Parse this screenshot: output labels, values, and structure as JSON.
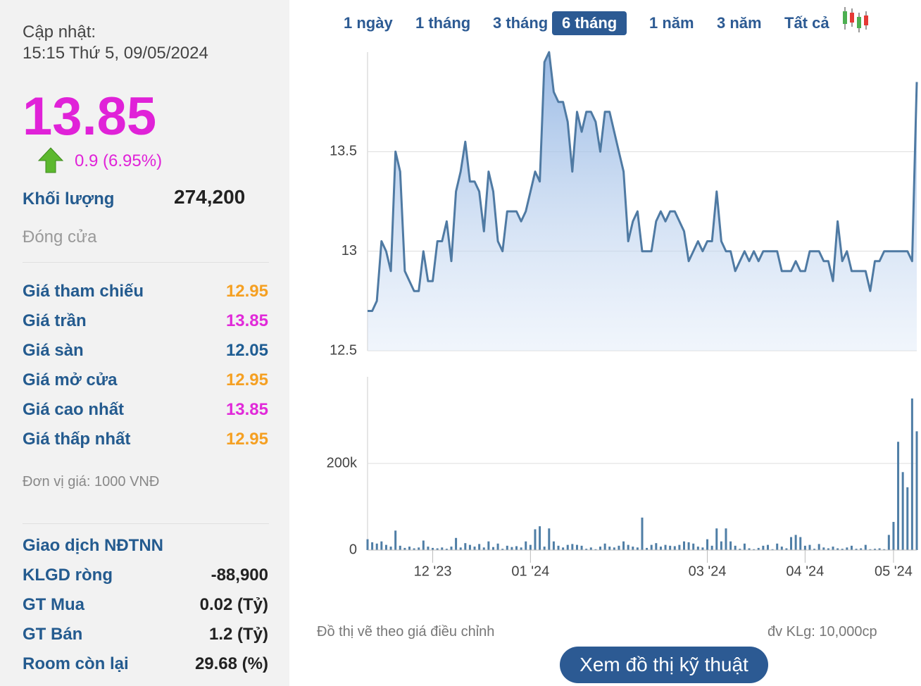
{
  "panel": {
    "update_label": "Cập nhật:",
    "update_time": "15:15 Thứ 5, 09/05/2024",
    "price": "13.85",
    "change": "0.9 (6.95%)",
    "volume_label": "Khối lượng",
    "volume": "274,200",
    "close_label": "Đóng cửa",
    "rows": [
      {
        "label": "Giá tham chiếu",
        "value": "12.95",
        "color": "#f5a023"
      },
      {
        "label": "Giá trần",
        "value": "13.85",
        "color": "#e12ad9"
      },
      {
        "label": "Giá sàn",
        "value": "12.05",
        "color": "#1f5d93"
      },
      {
        "label": "Giá mở cửa",
        "value": "12.95",
        "color": "#f5a023"
      },
      {
        "label": "Giá cao nhất",
        "value": "13.85",
        "color": "#e12ad9"
      },
      {
        "label": "Giá thấp nhất",
        "value": "12.95",
        "color": "#f5a023"
      }
    ],
    "unit_note": "Đơn vị giá: 1000 VNĐ",
    "foreign_title": "Giao dịch NĐTNN",
    "foreign_rows": [
      {
        "label": "KLGD ròng",
        "value": "-88,900"
      },
      {
        "label": "GT Mua",
        "value": "0.02 (Tỷ)"
      },
      {
        "label": "GT Bán",
        "value": "1.2 (Tỷ)"
      },
      {
        "label": "Room còn lại",
        "value": "29.68 (%)"
      }
    ]
  },
  "tabs": {
    "items": [
      "1 ngày",
      "1 tháng",
      "3 tháng",
      "6 tháng",
      "1 năm",
      "3 năm",
      "Tất cả"
    ],
    "active": 3
  },
  "chart_data": [
    {
      "type": "area",
      "color": "#4f7aa3",
      "grid": true,
      "xlim": [
        0,
        118
      ],
      "ylim": [
        12.5,
        14.0
      ],
      "yticks": [
        12.5,
        13,
        13.5
      ],
      "values": [
        12.7,
        12.7,
        12.75,
        13.05,
        13.0,
        12.9,
        13.5,
        13.4,
        12.9,
        12.85,
        12.8,
        12.8,
        13.0,
        12.85,
        12.85,
        13.05,
        13.05,
        13.15,
        12.95,
        13.3,
        13.4,
        13.55,
        13.35,
        13.35,
        13.3,
        13.1,
        13.4,
        13.3,
        13.05,
        13.0,
        13.2,
        13.2,
        13.2,
        13.15,
        13.2,
        13.3,
        13.4,
        13.35,
        13.95,
        14.0,
        13.8,
        13.75,
        13.75,
        13.65,
        13.4,
        13.7,
        13.6,
        13.7,
        13.7,
        13.65,
        13.5,
        13.7,
        13.7,
        13.6,
        13.5,
        13.4,
        13.05,
        13.15,
        13.2,
        13.0,
        13.0,
        13.0,
        13.15,
        13.2,
        13.15,
        13.2,
        13.2,
        13.15,
        13.1,
        12.95,
        13.0,
        13.05,
        13.0,
        13.05,
        13.05,
        13.3,
        13.05,
        13.0,
        13.0,
        12.9,
        12.95,
        13.0,
        12.95,
        13.0,
        12.95,
        13.0,
        13.0,
        13.0,
        13.0,
        12.9,
        12.9,
        12.9,
        12.95,
        12.9,
        12.9,
        13.0,
        13.0,
        13.0,
        12.95,
        12.95,
        12.85,
        13.15,
        12.95,
        13.0,
        12.9,
        12.9,
        12.9,
        12.9,
        12.8,
        12.95,
        12.95,
        13.0,
        13.0,
        13.0,
        13.0,
        13.0,
        13.0,
        12.95,
        13.85
      ]
    },
    {
      "type": "bar",
      "color": "#4f7ea6",
      "grid": true,
      "xlim": [
        0,
        118
      ],
      "ylim": [
        0,
        400000
      ],
      "yticks": [
        0,
        {
          "value": 200000,
          "label": "200k"
        }
      ],
      "xticks": [
        {
          "value": 14,
          "label": "12 '23"
        },
        {
          "value": 35,
          "label": "01 '24"
        },
        {
          "value": 73,
          "label": "03 '24"
        },
        {
          "value": 94,
          "label": "04 '24"
        },
        {
          "value": 113,
          "label": "05 '24"
        }
      ],
      "values": [
        25000,
        18000,
        15000,
        20000,
        12000,
        8000,
        45000,
        10000,
        5000,
        8000,
        4000,
        6000,
        22000,
        8000,
        5000,
        4000,
        6000,
        3000,
        8000,
        28000,
        6000,
        16000,
        12000,
        8000,
        14000,
        6000,
        20000,
        7000,
        15000,
        3000,
        10000,
        7000,
        9000,
        6000,
        20000,
        12000,
        48000,
        55000,
        8000,
        50000,
        20000,
        10000,
        6000,
        12000,
        14000,
        12000,
        10000,
        3000,
        6000,
        2000,
        8000,
        15000,
        8000,
        6000,
        10000,
        20000,
        12000,
        8000,
        6000,
        75000,
        5000,
        12000,
        16000,
        8000,
        12000,
        10000,
        9000,
        12000,
        20000,
        18000,
        15000,
        8000,
        6000,
        25000,
        10000,
        50000,
        20000,
        50000,
        20000,
        10000,
        3000,
        15000,
        4000,
        2000,
        5000,
        10000,
        12000,
        2000,
        15000,
        8000,
        4000,
        30000,
        35000,
        30000,
        10000,
        12000,
        3000,
        14000,
        6000,
        4000,
        8000,
        4000,
        3000,
        6000,
        10000,
        3000,
        4000,
        12000,
        2000,
        3000,
        4000,
        2000,
        35000,
        65000,
        250000,
        180000,
        145000,
        350000,
        274200
      ]
    }
  ],
  "footnote": "Đồ thị vẽ theo giá điều chỉnh",
  "unit_volume": "đv KLg: 10,000cp",
  "button": "Xem đồ thị kỹ thuật"
}
